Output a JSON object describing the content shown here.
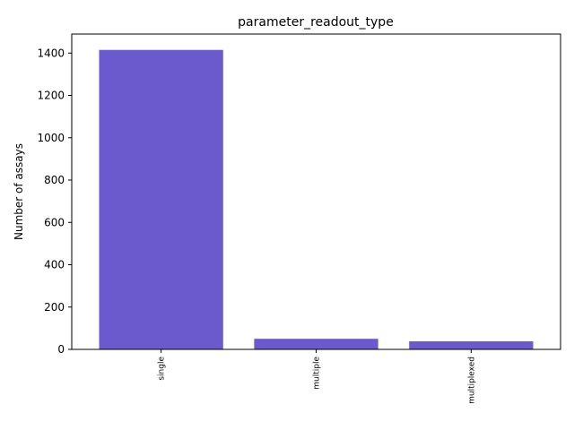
{
  "chart_data": {
    "type": "bar",
    "title": "parameter_readout_type",
    "xlabel": "",
    "ylabel": "Number of assays",
    "categories": [
      "single",
      "multiple",
      "multiplexed"
    ],
    "values": [
      1415,
      50,
      38
    ],
    "ylim": [
      0,
      1490
    ],
    "yticks": [
      0,
      200,
      400,
      600,
      800,
      1000,
      1200,
      1400
    ],
    "bar_color": "#6a5acd",
    "grid": false,
    "legend": "none"
  }
}
